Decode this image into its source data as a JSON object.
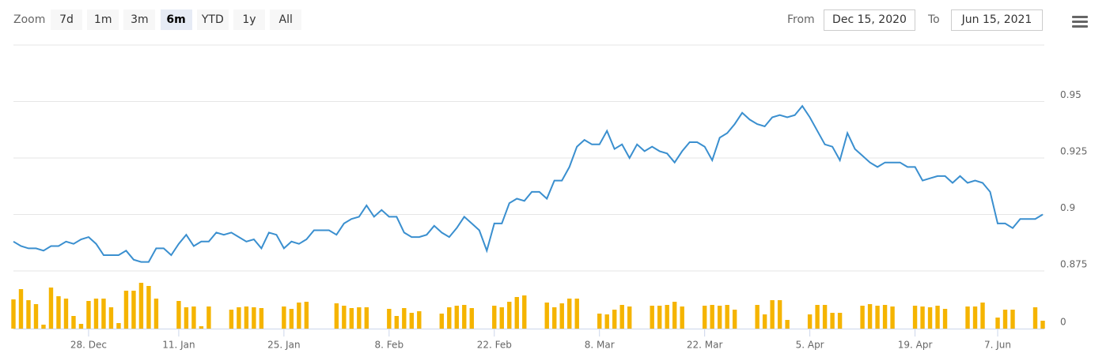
{
  "toolbar": {
    "zoom_label": "Zoom",
    "buttons": [
      "7d",
      "1m",
      "3m",
      "6m",
      "YTD",
      "1y",
      "All"
    ],
    "selected": 3,
    "from_label": "From",
    "from": "Dec 15, 2020",
    "to_label": "To",
    "to": "Jun 15, 2021"
  },
  "chart_data": [
    {
      "type": "line",
      "color": "#3a8fcf",
      "ylim": [
        0.875,
        0.975
      ],
      "yticks": [
        0.875,
        0.9,
        0.925,
        0.95
      ],
      "grid": true,
      "categories": [
        null,
        null,
        null,
        null,
        null,
        null,
        null,
        null,
        null,
        null,
        "28. Dec",
        null,
        null,
        null,
        null,
        null,
        null,
        null,
        null,
        null,
        null,
        null,
        "11. Jan",
        null,
        null,
        null,
        null,
        null,
        null,
        null,
        null,
        null,
        null,
        null,
        null,
        null,
        "25. Jan",
        null,
        null,
        null,
        null,
        null,
        null,
        null,
        null,
        null,
        null,
        null,
        null,
        null,
        "8. Feb",
        null,
        null,
        null,
        null,
        null,
        null,
        null,
        null,
        null,
        null,
        null,
        null,
        null,
        "22. Feb",
        null,
        null,
        null,
        null,
        null,
        null,
        null,
        null,
        null,
        null,
        null,
        null,
        null,
        "8. Mar",
        null,
        null,
        null,
        null,
        null,
        null,
        null,
        null,
        null,
        null,
        null,
        null,
        null,
        "22. Mar",
        null,
        null,
        null,
        null,
        null,
        null,
        null,
        null,
        null,
        null,
        null,
        null,
        null,
        "5. Apr",
        null,
        null,
        null,
        null,
        null,
        null,
        null,
        null,
        null,
        null,
        null,
        null,
        null,
        "19. Apr",
        null,
        null,
        null,
        null,
        null,
        null,
        null,
        null,
        null,
        null,
        "7. Jun",
        null,
        null,
        null,
        null,
        null,
        null
      ],
      "values": [
        0.888,
        0.886,
        0.885,
        0.885,
        0.884,
        0.886,
        0.886,
        0.888,
        0.887,
        0.889,
        0.89,
        0.887,
        0.882,
        0.882,
        0.882,
        0.884,
        0.88,
        0.879,
        0.879,
        0.885,
        0.885,
        0.882,
        0.887,
        0.891,
        0.886,
        0.888,
        0.888,
        0.892,
        0.891,
        0.892,
        0.89,
        0.888,
        0.889,
        0.885,
        0.892,
        0.891,
        0.885,
        0.888,
        0.887,
        0.889,
        0.893,
        0.893,
        0.893,
        0.891,
        0.896,
        0.898,
        0.899,
        0.904,
        0.899,
        0.902,
        0.899,
        0.899,
        0.892,
        0.89,
        0.89,
        0.891,
        0.895,
        0.892,
        0.89,
        0.894,
        0.899,
        0.896,
        0.893,
        0.884,
        0.896,
        0.896,
        0.905,
        0.907,
        0.906,
        0.91,
        0.91,
        0.907,
        0.915,
        0.915,
        0.921,
        0.93,
        0.933,
        0.931,
        0.931,
        0.937,
        0.929,
        0.931,
        0.925,
        0.931,
        0.928,
        0.93,
        0.928,
        0.927,
        0.923,
        0.928,
        0.932,
        0.932,
        0.93,
        0.924,
        0.934,
        0.936,
        0.94,
        0.945,
        0.942,
        0.94,
        0.939,
        0.943,
        0.944,
        0.943,
        0.944,
        0.948,
        0.943,
        0.937,
        0.931,
        0.93,
        0.924,
        0.936,
        0.929,
        0.926,
        0.923,
        0.921,
        0.923,
        0.923,
        0.923,
        0.921,
        0.921,
        0.915,
        0.916,
        0.917,
        0.917,
        0.914,
        0.917,
        0.914,
        0.915,
        0.914,
        0.91,
        0.896,
        0.896,
        0.894,
        0.898,
        0.898,
        0.898,
        0.9
      ]
    },
    {
      "type": "bar",
      "color": "#f5b400",
      "ylim": [
        0,
        73
      ],
      "yticks": [
        0
      ],
      "values": [
        37,
        50,
        36,
        31,
        5,
        52,
        41,
        38,
        16,
        6,
        35,
        38,
        38,
        27,
        7,
        48,
        48,
        58,
        54,
        38,
        null,
        null,
        35,
        27,
        28,
        3,
        28,
        null,
        null,
        24,
        27,
        28,
        27,
        26,
        null,
        null,
        28,
        25,
        33,
        34,
        null,
        null,
        null,
        32,
        29,
        26,
        27,
        27,
        null,
        null,
        25,
        16,
        26,
        20,
        22,
        null,
        null,
        19,
        27,
        29,
        30,
        26,
        null,
        null,
        29,
        27,
        34,
        40,
        42,
        null,
        null,
        33,
        27,
        32,
        38,
        38,
        null,
        null,
        19,
        18,
        24,
        30,
        28,
        null,
        null,
        29,
        29,
        30,
        34,
        28,
        null,
        null,
        29,
        30,
        29,
        30,
        24,
        null,
        null,
        30,
        18,
        36,
        36,
        11,
        null,
        null,
        18,
        30,
        30,
        20,
        20,
        null,
        null,
        29,
        31,
        29,
        30,
        28,
        null,
        null,
        29,
        28,
        27,
        29,
        25,
        null,
        null,
        28,
        28,
        33,
        null,
        14,
        24,
        24,
        null,
        null,
        27,
        10
      ]
    }
  ]
}
